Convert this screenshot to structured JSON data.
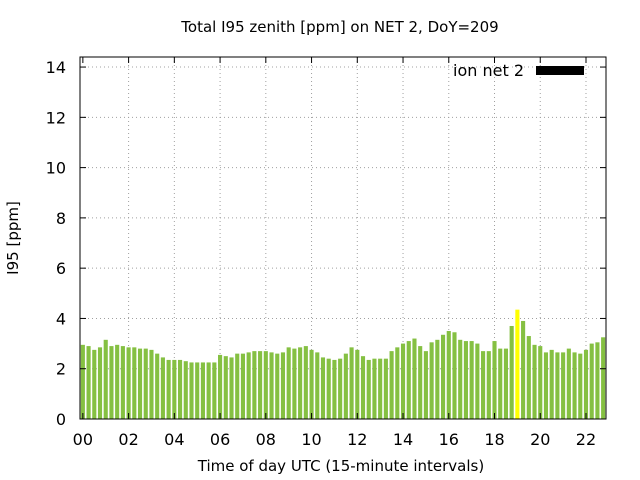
{
  "chart_data": {
    "type": "bar",
    "title": "Total I95 zenith [ppm] on NET 2, DoY=209",
    "xlabel": "Time of day UTC (15-minute intervals)",
    "ylabel": "I95 [ppm]",
    "ylim": [
      0,
      14.4
    ],
    "xlim": [
      0,
      22.75
    ],
    "grid": true,
    "legend": {
      "label": "ion net 2",
      "placement": "top-right",
      "color": "#000000"
    },
    "bar_color": "#85c042",
    "highlight_color": "#ffff00",
    "x_ticks": [
      0,
      2,
      4,
      6,
      8,
      10,
      12,
      14,
      16,
      18,
      20,
      22
    ],
    "x_tick_labels": [
      "00",
      "02",
      "04",
      "06",
      "08",
      "10",
      "12",
      "14",
      "16",
      "18",
      "20",
      "22"
    ],
    "y_ticks": [
      0,
      2,
      4,
      6,
      8,
      10,
      12,
      14
    ],
    "y_tick_labels": [
      "0",
      "2",
      "4",
      "6",
      "8",
      "10",
      "12",
      "14"
    ],
    "interval_hours": 0.25,
    "bars": [
      {
        "x": 0.0,
        "value": 2.95
      },
      {
        "x": 0.25,
        "value": 2.9
      },
      {
        "x": 0.5,
        "value": 2.75
      },
      {
        "x": 0.75,
        "value": 2.85
      },
      {
        "x": 1.0,
        "value": 3.15
      },
      {
        "x": 1.25,
        "value": 2.9
      },
      {
        "x": 1.5,
        "value": 2.95
      },
      {
        "x": 1.75,
        "value": 2.9
      },
      {
        "x": 2.0,
        "value": 2.85
      },
      {
        "x": 2.25,
        "value": 2.85
      },
      {
        "x": 2.5,
        "value": 2.8
      },
      {
        "x": 2.75,
        "value": 2.8
      },
      {
        "x": 3.0,
        "value": 2.75
      },
      {
        "x": 3.25,
        "value": 2.6
      },
      {
        "x": 3.5,
        "value": 2.45
      },
      {
        "x": 3.75,
        "value": 2.35
      },
      {
        "x": 4.0,
        "value": 2.35
      },
      {
        "x": 4.25,
        "value": 2.35
      },
      {
        "x": 4.5,
        "value": 2.3
      },
      {
        "x": 4.75,
        "value": 2.25
      },
      {
        "x": 5.0,
        "value": 2.25
      },
      {
        "x": 5.25,
        "value": 2.25
      },
      {
        "x": 5.5,
        "value": 2.25
      },
      {
        "x": 5.75,
        "value": 2.25
      },
      {
        "x": 6.0,
        "value": 2.55
      },
      {
        "x": 6.25,
        "value": 2.5
      },
      {
        "x": 6.5,
        "value": 2.45
      },
      {
        "x": 6.75,
        "value": 2.6
      },
      {
        "x": 7.0,
        "value": 2.6
      },
      {
        "x": 7.25,
        "value": 2.65
      },
      {
        "x": 7.5,
        "value": 2.7
      },
      {
        "x": 7.75,
        "value": 2.7
      },
      {
        "x": 8.0,
        "value": 2.7
      },
      {
        "x": 8.25,
        "value": 2.65
      },
      {
        "x": 8.5,
        "value": 2.6
      },
      {
        "x": 8.75,
        "value": 2.65
      },
      {
        "x": 9.0,
        "value": 2.85
      },
      {
        "x": 9.25,
        "value": 2.8
      },
      {
        "x": 9.5,
        "value": 2.85
      },
      {
        "x": 9.75,
        "value": 2.9
      },
      {
        "x": 10.0,
        "value": 2.75
      },
      {
        "x": 10.25,
        "value": 2.65
      },
      {
        "x": 10.5,
        "value": 2.45
      },
      {
        "x": 10.75,
        "value": 2.4
      },
      {
        "x": 11.0,
        "value": 2.35
      },
      {
        "x": 11.25,
        "value": 2.4
      },
      {
        "x": 11.5,
        "value": 2.6
      },
      {
        "x": 11.75,
        "value": 2.85
      },
      {
        "x": 12.0,
        "value": 2.75
      },
      {
        "x": 12.25,
        "value": 2.5
      },
      {
        "x": 12.5,
        "value": 2.35
      },
      {
        "x": 12.75,
        "value": 2.4
      },
      {
        "x": 13.0,
        "value": 2.4
      },
      {
        "x": 13.25,
        "value": 2.4
      },
      {
        "x": 13.5,
        "value": 2.7
      },
      {
        "x": 13.75,
        "value": 2.85
      },
      {
        "x": 14.0,
        "value": 3.0
      },
      {
        "x": 14.25,
        "value": 3.1
      },
      {
        "x": 14.5,
        "value": 3.2
      },
      {
        "x": 14.75,
        "value": 2.9
      },
      {
        "x": 15.0,
        "value": 2.7
      },
      {
        "x": 15.25,
        "value": 3.05
      },
      {
        "x": 15.5,
        "value": 3.15
      },
      {
        "x": 15.75,
        "value": 3.35
      },
      {
        "x": 16.0,
        "value": 3.5
      },
      {
        "x": 16.25,
        "value": 3.45
      },
      {
        "x": 16.5,
        "value": 3.15
      },
      {
        "x": 16.75,
        "value": 3.1
      },
      {
        "x": 17.0,
        "value": 3.1
      },
      {
        "x": 17.25,
        "value": 3.0
      },
      {
        "x": 17.5,
        "value": 2.7
      },
      {
        "x": 17.75,
        "value": 2.7
      },
      {
        "x": 18.0,
        "value": 3.1
      },
      {
        "x": 18.25,
        "value": 2.8
      },
      {
        "x": 18.5,
        "value": 2.8
      },
      {
        "x": 18.75,
        "value": 3.7
      },
      {
        "x": 19.0,
        "value": 4.35,
        "highlight": true
      },
      {
        "x": 19.25,
        "value": 3.9
      },
      {
        "x": 19.5,
        "value": 3.3
      },
      {
        "x": 19.75,
        "value": 2.95
      },
      {
        "x": 20.0,
        "value": 2.9
      },
      {
        "x": 20.25,
        "value": 2.65
      },
      {
        "x": 20.5,
        "value": 2.75
      },
      {
        "x": 20.75,
        "value": 2.65
      },
      {
        "x": 21.0,
        "value": 2.65
      },
      {
        "x": 21.25,
        "value": 2.8
      },
      {
        "x": 21.5,
        "value": 2.65
      },
      {
        "x": 21.75,
        "value": 2.6
      },
      {
        "x": 22.0,
        "value": 2.75
      },
      {
        "x": 22.25,
        "value": 3.0
      },
      {
        "x": 22.5,
        "value": 3.05
      },
      {
        "x": 22.75,
        "value": 3.25
      }
    ]
  }
}
